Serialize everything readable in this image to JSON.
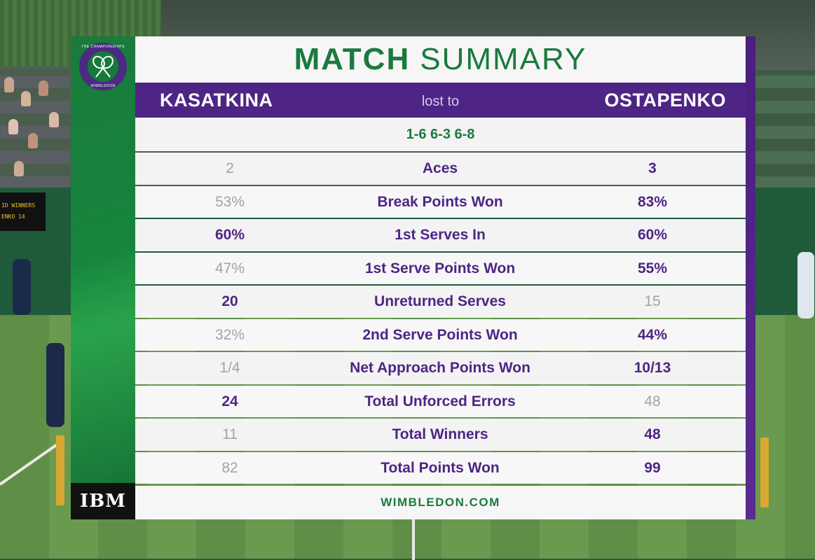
{
  "title": {
    "bold": "MATCH",
    "light": "SUMMARY"
  },
  "players": {
    "left": "KASATKINA",
    "result": "lost to",
    "right": "OSTAPENKO"
  },
  "score": "1-6 6-3 6-8",
  "stats": [
    {
      "left": "2",
      "label": "Aces",
      "right": "3",
      "winner": "right"
    },
    {
      "left": "53%",
      "label": "Break Points Won",
      "right": "83%",
      "winner": "right"
    },
    {
      "left": "60%",
      "label": "1st Serves In",
      "right": "60%",
      "winner": "both"
    },
    {
      "left": "47%",
      "label": "1st Serve Points Won",
      "right": "55%",
      "winner": "right"
    },
    {
      "left": "20",
      "label": "Unreturned Serves",
      "right": "15",
      "winner": "left"
    },
    {
      "left": "32%",
      "label": "2nd Serve Points Won",
      "right": "44%",
      "winner": "right"
    },
    {
      "left": "1/4",
      "label": "Net Approach Points Won",
      "right": "10/13",
      "winner": "right"
    },
    {
      "left": "24",
      "label": "Total Unforced Errors",
      "right": "48",
      "winner": "left"
    },
    {
      "left": "11",
      "label": "Total Winners",
      "right": "48",
      "winner": "right"
    },
    {
      "left": "82",
      "label": "Total Points Won",
      "right": "99",
      "winner": "right"
    }
  ],
  "footer": "WIMBLEDON.COM",
  "sponsor": "IBM",
  "logo": {
    "top_text": "THE CHAMPIONSHIPS",
    "bottom_text": "WIMBLEDON"
  },
  "background_scoreboard": {
    "line1": "ID WINNERS",
    "line2": "ENKO  14"
  },
  "colors": {
    "purple": "#4e2584",
    "green": "#1b7a3e",
    "muted": "#a3a3a3"
  }
}
